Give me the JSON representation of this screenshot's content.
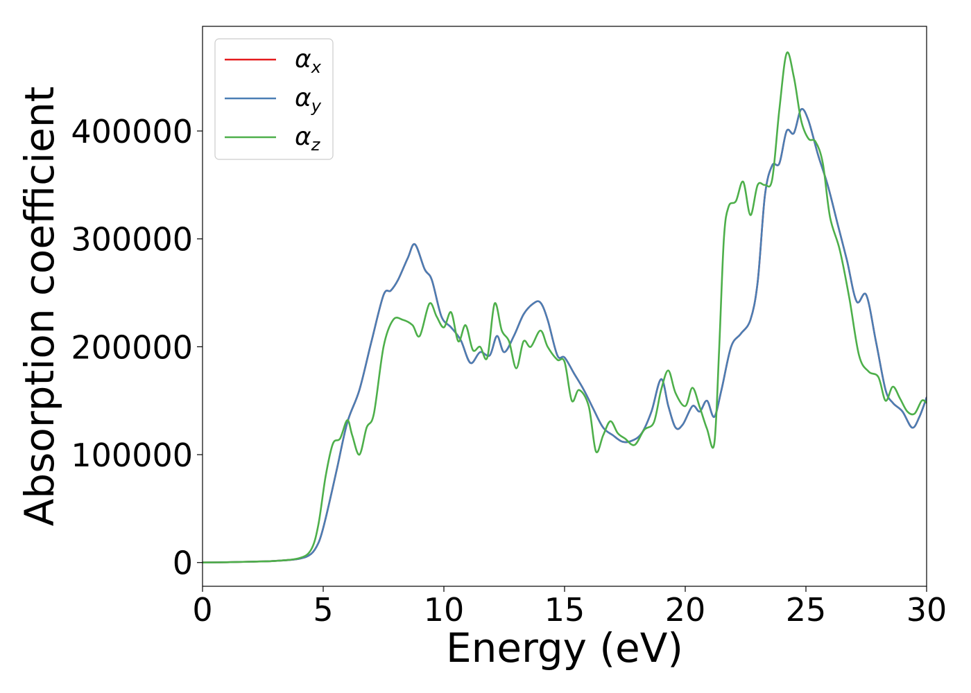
{
  "chart_data": {
    "type": "line",
    "xlabel": "Energy (eV)",
    "ylabel": "Absorption coefficient",
    "xlim": [
      0,
      30
    ],
    "ylim": [
      -22000,
      497000
    ],
    "xticks": [
      0,
      5,
      10,
      15,
      20,
      25,
      30
    ],
    "xtick_labels": [
      "0",
      "5",
      "10",
      "15",
      "20",
      "25",
      "30"
    ],
    "yticks": [
      0,
      100000,
      200000,
      300000,
      400000
    ],
    "ytick_labels": [
      "0",
      "100000",
      "200000",
      "300000",
      "400000"
    ],
    "grid": false,
    "legend_position": "top-left",
    "series": [
      {
        "name": "α_x",
        "symbol": "α",
        "subscript": "x",
        "color": "#e41a1c",
        "x": [
          0,
          1,
          2,
          3,
          4,
          4.5,
          4.8,
          5.0,
          5.3,
          5.6,
          6.0,
          6.5,
          7.0,
          7.5,
          7.8,
          8.1,
          8.5,
          8.8,
          9.2,
          9.5,
          9.9,
          10.3,
          10.7,
          11.1,
          11.5,
          11.9,
          12.2,
          12.5,
          12.9,
          13.3,
          13.7,
          14.0,
          14.3,
          14.7,
          15.0,
          15.4,
          15.8,
          16.2,
          16.6,
          17.0,
          17.4,
          17.8,
          18.2,
          18.6,
          19.0,
          19.3,
          19.6,
          19.9,
          20.3,
          20.6,
          20.9,
          21.2,
          21.5,
          21.9,
          22.3,
          22.7,
          23.0,
          23.3,
          23.6,
          23.9,
          24.2,
          24.5,
          24.8,
          25.1,
          25.5,
          25.9,
          26.3,
          26.7,
          27.1,
          27.5,
          27.9,
          28.3,
          28.6,
          29.0,
          29.4,
          29.7,
          30.0
        ],
        "y": [
          0,
          300,
          800,
          1500,
          3500,
          8000,
          18000,
          32000,
          60000,
          90000,
          130000,
          160000,
          205000,
          248000,
          252000,
          262000,
          282000,
          295000,
          272000,
          262000,
          228000,
          218000,
          206000,
          185000,
          195000,
          192000,
          210000,
          195000,
          210000,
          230000,
          240000,
          241000,
          225000,
          192000,
          190000,
          175000,
          160000,
          142000,
          125000,
          118000,
          112000,
          113000,
          120000,
          140000,
          170000,
          145000,
          125000,
          128000,
          145000,
          140000,
          150000,
          135000,
          160000,
          200000,
          212000,
          225000,
          260000,
          340000,
          368000,
          370000,
          400000,
          398000,
          420000,
          410000,
          378000,
          350000,
          315000,
          280000,
          242000,
          248000,
          205000,
          160000,
          148000,
          140000,
          125000,
          135000,
          153000
        ]
      },
      {
        "name": "α_y",
        "symbol": "α",
        "subscript": "y",
        "color": "#4a7eb4",
        "x": [
          0,
          1,
          2,
          3,
          4,
          4.5,
          4.8,
          5.0,
          5.3,
          5.6,
          6.0,
          6.5,
          7.0,
          7.5,
          7.8,
          8.1,
          8.5,
          8.8,
          9.2,
          9.5,
          9.9,
          10.3,
          10.7,
          11.1,
          11.5,
          11.9,
          12.2,
          12.5,
          12.9,
          13.3,
          13.7,
          14.0,
          14.3,
          14.7,
          15.0,
          15.4,
          15.8,
          16.2,
          16.6,
          17.0,
          17.4,
          17.8,
          18.2,
          18.6,
          19.0,
          19.3,
          19.6,
          19.9,
          20.3,
          20.6,
          20.9,
          21.2,
          21.5,
          21.9,
          22.3,
          22.7,
          23.0,
          23.3,
          23.6,
          23.9,
          24.2,
          24.5,
          24.8,
          25.1,
          25.5,
          25.9,
          26.3,
          26.7,
          27.1,
          27.5,
          27.9,
          28.3,
          28.6,
          29.0,
          29.4,
          29.7,
          30.0
        ],
        "y": [
          0,
          300,
          800,
          1500,
          3500,
          8000,
          18000,
          32000,
          60000,
          90000,
          130000,
          160000,
          205000,
          248000,
          252000,
          262000,
          282000,
          295000,
          272000,
          262000,
          228000,
          218000,
          206000,
          185000,
          195000,
          192000,
          210000,
          195000,
          210000,
          230000,
          240000,
          241000,
          225000,
          192000,
          190000,
          175000,
          160000,
          142000,
          125000,
          118000,
          112000,
          113000,
          120000,
          140000,
          170000,
          145000,
          125000,
          128000,
          145000,
          140000,
          150000,
          135000,
          160000,
          200000,
          212000,
          225000,
          260000,
          340000,
          368000,
          370000,
          400000,
          398000,
          420000,
          410000,
          378000,
          350000,
          315000,
          280000,
          242000,
          248000,
          205000,
          160000,
          148000,
          140000,
          125000,
          135000,
          153000
        ]
      },
      {
        "name": "α_z",
        "symbol": "α",
        "subscript": "z",
        "color": "#4daf4a",
        "x": [
          0,
          1,
          2,
          3,
          4,
          4.5,
          4.8,
          5.1,
          5.4,
          5.7,
          6.0,
          6.2,
          6.5,
          6.8,
          7.1,
          7.5,
          7.9,
          8.3,
          8.7,
          9.0,
          9.4,
          9.7,
          10.0,
          10.3,
          10.6,
          10.9,
          11.2,
          11.5,
          11.8,
          12.1,
          12.4,
          12.7,
          13.0,
          13.3,
          13.6,
          14.0,
          14.3,
          14.7,
          15.0,
          15.3,
          15.6,
          16.0,
          16.3,
          16.6,
          16.9,
          17.2,
          17.5,
          17.9,
          18.3,
          18.7,
          19.0,
          19.3,
          19.6,
          20.0,
          20.3,
          20.6,
          20.9,
          21.2,
          21.4,
          21.6,
          21.8,
          22.1,
          22.4,
          22.7,
          23.0,
          23.3,
          23.6,
          23.9,
          24.2,
          24.5,
          24.8,
          25.1,
          25.4,
          25.7,
          26.0,
          26.4,
          26.8,
          27.2,
          27.6,
          28.0,
          28.3,
          28.6,
          28.9,
          29.2,
          29.5,
          29.8,
          30.0
        ],
        "y": [
          0,
          300,
          800,
          1500,
          4000,
          12000,
          35000,
          80000,
          110000,
          115000,
          132000,
          118000,
          100000,
          125000,
          138000,
          200000,
          225000,
          225000,
          220000,
          210000,
          240000,
          228000,
          218000,
          232000,
          205000,
          220000,
          197000,
          200000,
          190000,
          240000,
          215000,
          205000,
          180000,
          205000,
          200000,
          215000,
          200000,
          188000,
          186000,
          150000,
          160000,
          145000,
          103000,
          118000,
          131000,
          120000,
          115000,
          109000,
          123000,
          130000,
          160000,
          178000,
          157000,
          145000,
          162000,
          144000,
          124000,
          110000,
          195000,
          300000,
          330000,
          335000,
          353000,
          322000,
          350000,
          350000,
          355000,
          420000,
          472000,
          450000,
          410000,
          393000,
          390000,
          370000,
          320000,
          290000,
          245000,
          192000,
          177000,
          172000,
          150000,
          163000,
          152000,
          140000,
          138000,
          150000,
          148000
        ]
      }
    ]
  }
}
